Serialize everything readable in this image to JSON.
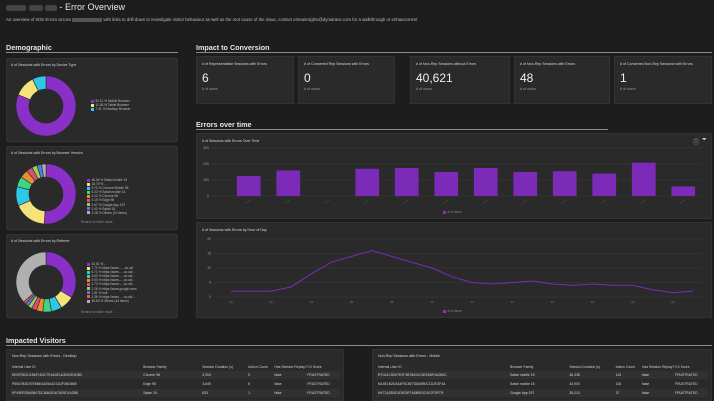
{
  "header": {
    "title": "- Error Overview",
    "subtitle_start": "An overview of SDE Errors across",
    "subtitle_end": "with links to drill-down to investigate visitor behaviour as well as the root cause of the issue, contact emeainsights@dynatrace.com for a walkthrough or enhancement"
  },
  "sections": {
    "demographic": "Demographic",
    "impact": "Impact to Conversion",
    "errors_over_time": "Errors over time",
    "impacted_visitors": "Impacted Visitors"
  },
  "device_chart": {
    "title": "# of Sessions with Errors by Device Type",
    "legend": [
      {
        "label": "81.11 % Mobile Browser",
        "color": "#8b2fc9"
      },
      {
        "label": "11.48 % Tablet Browser",
        "color": "#f5e27a"
      },
      {
        "label": "7.41 % Desktop Browser",
        "color": "#2fc7e6"
      }
    ],
    "slices": [
      81.11,
      11.48,
      7.41
    ]
  },
  "browser_chart": {
    "title": "# of Sessions with Errors by Browser Version",
    "legend": [
      {
        "label": "48.06 % Safari mobile 15",
        "color": "#8b2fc9"
      },
      {
        "label": "16.75 % ...",
        "color": "#f5e27a"
      },
      {
        "label": "9.70 % Chrome Mobile 98",
        "color": "#2fc7e6"
      },
      {
        "label": "5.33 % Safari mobile 14",
        "color": "#3fd48a"
      },
      {
        "label": "4.12 % Chrome 98",
        "color": "#e8902f"
      },
      {
        "label": "3.15 % Edge 98",
        "color": "#d94f7a"
      },
      {
        "label": "2.67 % Google App 197",
        "color": "#9bd14b"
      },
      {
        "label": "2.42 % Safari 15",
        "color": "#4f7ae8"
      },
      {
        "label": "2.18 % Others (10 items)",
        "color": "#b0b0b0"
      }
    ],
    "slices": [
      48.06,
      16.75,
      9.7,
      5.33,
      4.12,
      3.15,
      2.67,
      2.42,
      2.18
    ],
    "note": "Restrict to slider mode"
  },
  "referrer_chart": {
    "title": "# of Sessions with Errors by Referrer",
    "legend": [
      {
        "label": "33.61 % ...",
        "color": "#8b2fc9"
      },
      {
        "label": "7.72 % https://www.......co.uk/",
        "color": "#f5e27a"
      },
      {
        "label": "5.71 % https://www......co.uk/...",
        "color": "#2fc7e6"
      },
      {
        "label": "4.63 % https://www......co.uk/...",
        "color": "#3fd48a"
      },
      {
        "label": "3.50 % https://www......co.uk/...",
        "color": "#e8902f"
      },
      {
        "label": "2.73 % https://www......co.uk/...",
        "color": "#d94f7a"
      },
      {
        "label": "2.28 % https://www.google.com/",
        "color": "#9bd14b"
      },
      {
        "label": "1.81 % null",
        "color": "#4f7ae8"
      },
      {
        "label": "1.38 % https://www......co.uk/...",
        "color": "#e85b4f"
      },
      {
        "label": "36.63 % Others (44 items)",
        "color": "#b0b0b0"
      }
    ],
    "slices": [
      33.61,
      7.72,
      5.71,
      4.63,
      3.5,
      2.73,
      2.28,
      1.81,
      1.38,
      36.63
    ],
    "note": "Restrict to slider mode"
  },
  "kpis": [
    {
      "title": "# of Representative Sessions with Errors",
      "value": "6",
      "sub": "# of users"
    },
    {
      "title": "# of Converted Rep Sessions with Errors",
      "value": "0",
      "sub": "# of users"
    },
    {
      "title": "# of Non-Rep Sessions without Errors",
      "value": "40,621",
      "sub": "# of users"
    },
    {
      "title": "# of Non-Rep Sessions with Errors",
      "value": "48",
      "sub": "# of users"
    },
    {
      "title": "# of Converted Non-Rep Sessions with Errors",
      "value": "1",
      "sub": "# of users"
    }
  ],
  "bar_chart_panel": {
    "title": "# of Sessions with Errors Over Time",
    "legend": "# of users"
  },
  "line_chart_panel": {
    "title": "# of Sessions with Errors by Hour of Day",
    "legend": "# of users"
  },
  "chart_data": [
    {
      "type": "bar",
      "title": "# of Sessions with Errors Over Time",
      "categories": [
        "",
        "",
        "",
        "",
        "",
        "",
        "",
        "",
        "",
        "",
        "",
        ""
      ],
      "values": [
        125,
        160,
        0,
        170,
        175,
        150,
        175,
        150,
        155,
        140,
        208,
        60
      ],
      "ylim": [
        0,
        300
      ],
      "yticks": [
        "300",
        "200",
        "100",
        "0"
      ],
      "series_name": "# of users"
    },
    {
      "type": "line",
      "title": "# of Sessions with Errors by Hour of Day",
      "x": [
        0,
        1,
        2,
        3,
        4,
        5,
        6,
        7,
        8,
        9,
        10,
        11,
        12,
        13,
        14,
        15,
        16,
        17,
        18,
        19,
        20,
        21,
        22,
        23
      ],
      "values": [
        2,
        2,
        2,
        3.5,
        8,
        12,
        14,
        16,
        14,
        12,
        10,
        7,
        5,
        4.5,
        5,
        5.5,
        4.5,
        4,
        4.5,
        4,
        4,
        2.5,
        1.5,
        2
      ],
      "ylim": [
        0,
        20
      ],
      "yticks": [
        "20",
        "15",
        "10",
        "5",
        "0"
      ],
      "series_name": "# of users"
    }
  ],
  "desktop_table": {
    "title": "Non-Rep Sessions with Errors - Desktop",
    "headers": [
      "Internal User ID",
      "Browser Family",
      "Session Duration (s)",
      "Action Count",
      "Has Session Replay?",
      "CX Score"
    ],
    "rows": [
      [
        "MV0F08CD1B6F1D4C7E4A0E1A3D02E0DB0",
        "Chrome 98",
        "3,394",
        "5",
        "false",
        "FRUSTRATED"
      ],
      [
        "P50A7B3D07E8BE4A05A4DC62F0BD6B5",
        "Edge 98",
        "3,649",
        "6",
        "false",
        "FRUSTRATED"
      ],
      [
        "KF49EEE8A0B47DCA8A3D4C6D9D1A2B8",
        "Safari 15",
        "833",
        "1",
        "false",
        "FRUSTRATED"
      ]
    ]
  },
  "mobile_table": {
    "title": "Non-Rep Sessions with Errors - Mobile",
    "headers": [
      "Internal User ID",
      "Browser Family",
      "Session Duration (s)",
      "Action Count",
      "Has Session Replay?",
      "CX Score"
    ],
    "rows": [
      [
        "RT0A1C5D07E2F4B78A91C3E5D8F0A2B4C",
        "Safari mobile 15",
        "36,338",
        "115",
        "false",
        "FRUSTRATED"
      ],
      [
        "ML6E1B2D3A4F5C6E7D8A9B0C1D2E3F4A",
        "Safari mobile 15",
        "43,900",
        "116",
        "false",
        "FRUSTRATED"
      ],
      [
        "HK71A2B3C4D5E6F7A8B9C0D1E2F3PTR",
        "Google App 197",
        "35,213",
        "37",
        "false",
        "FRUSTRATED"
      ]
    ]
  }
}
